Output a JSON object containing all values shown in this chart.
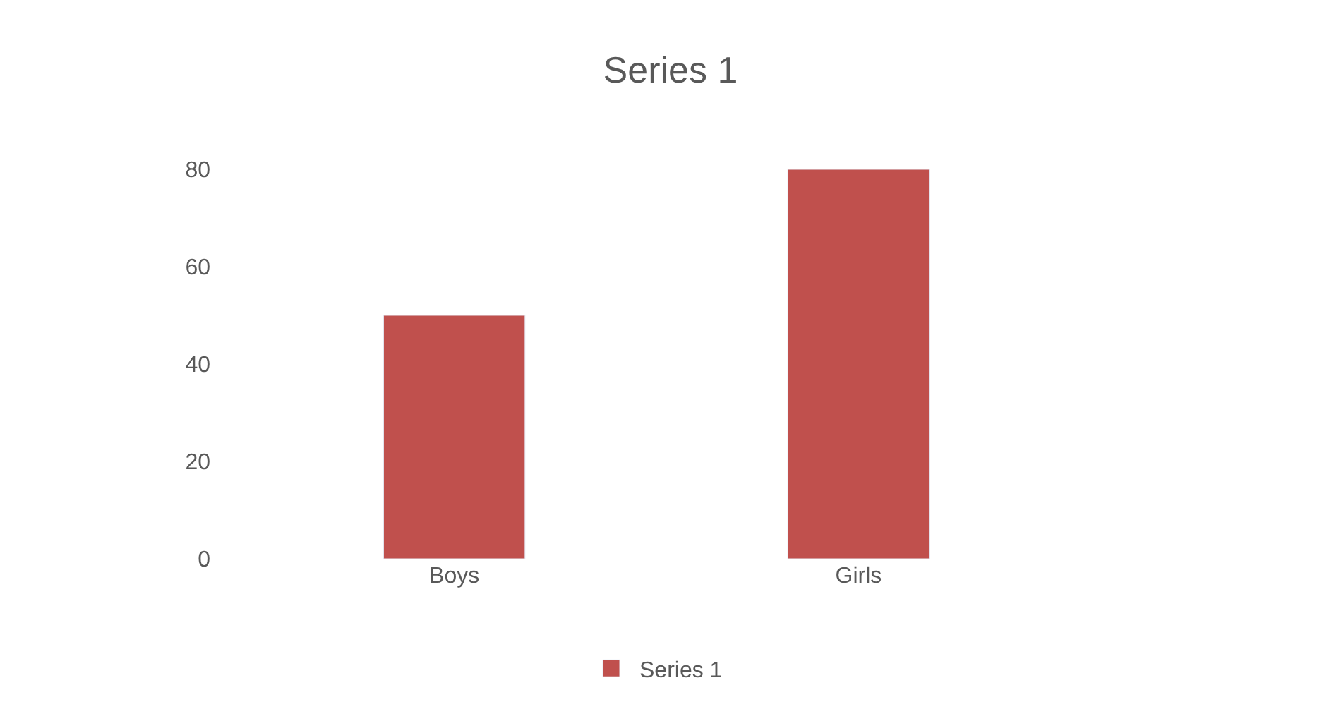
{
  "chart_data": {
    "type": "bar",
    "title": "Series 1",
    "categories": [
      "Boys",
      "Girls"
    ],
    "series": [
      {
        "name": "Series 1",
        "color": "#c0504d",
        "values": [
          50,
          80
        ]
      }
    ],
    "ylim": [
      0,
      80
    ],
    "yticks": [
      0,
      20,
      40,
      60,
      80
    ],
    "legend": "bottom"
  }
}
